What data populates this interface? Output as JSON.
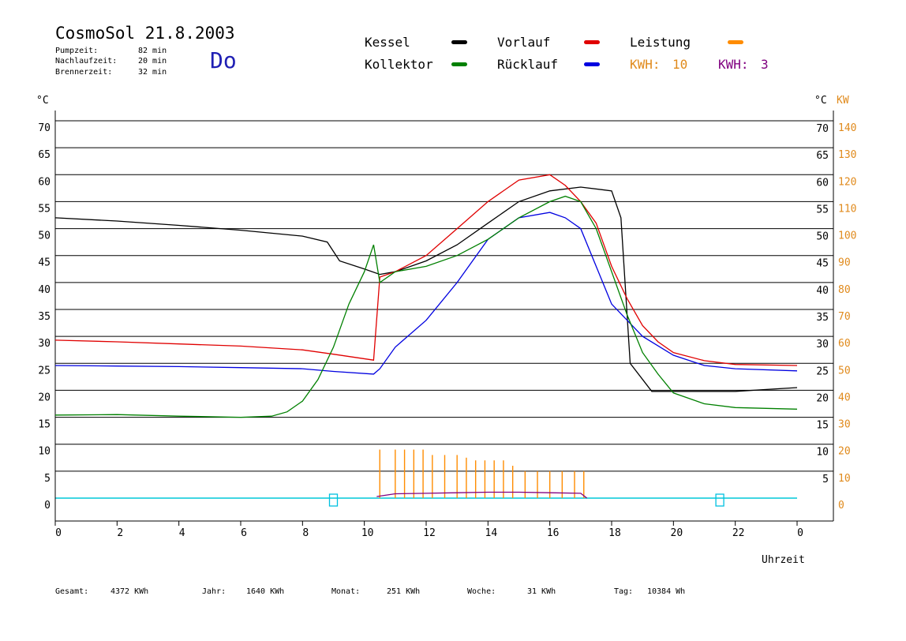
{
  "header": {
    "title": "CosmoSol 21.8.2003",
    "weekday": "Do",
    "info": [
      {
        "label": "Pumpzeit:",
        "value": "82 min"
      },
      {
        "label": "Nachlaufzeit:",
        "value": "20 min"
      },
      {
        "label": "Brennerzeit:",
        "value": "32 min"
      }
    ]
  },
  "legend": {
    "kessel": {
      "label": "Kessel",
      "color": "#000000"
    },
    "vorlauf": {
      "label": "Vorlauf",
      "color": "#e00000"
    },
    "leistung": {
      "label": "Leistung",
      "color": "#ff8c00"
    },
    "kollektor": {
      "label": "Kollektor",
      "color": "#008000"
    },
    "ruecklauf": {
      "label": "Rücklauf",
      "color": "#0000e0"
    },
    "kwh1": {
      "label": "KWH:",
      "value": "10",
      "color": "#e08a1c"
    },
    "kwh2": {
      "label": "KWH:",
      "value": "3",
      "color": "#800080"
    }
  },
  "footer": {
    "gesamt": {
      "label": "Gesamt:",
      "value": "4372 KWh"
    },
    "jahr": {
      "label": "Jahr:",
      "value": "1640 KWh"
    },
    "monat": {
      "label": "Monat:",
      "value": "251 KWh"
    },
    "woche": {
      "label": "Woche:",
      "value": "31 KWh"
    },
    "tag": {
      "label": "Tag:",
      "value": "10384 Wh"
    }
  },
  "chart_data": {
    "type": "line",
    "xlabel": "Uhrzeit",
    "ylabel_left": "°C",
    "ylabel_right_1": "°C",
    "ylabel_right_2": "KW",
    "xlim": [
      0,
      24
    ],
    "ylim": [
      0,
      70
    ],
    "ylim_right_kw": [
      0,
      140
    ],
    "x_ticks": [
      "0",
      "2",
      "4",
      "6",
      "8",
      "10",
      "12",
      "14",
      "16",
      "18",
      "20",
      "22",
      "0"
    ],
    "y_ticks_left": [
      "0",
      "5",
      "10",
      "15",
      "20",
      "25",
      "30",
      "35",
      "40",
      "45",
      "50",
      "55",
      "60",
      "65",
      "70"
    ],
    "y_ticks_right_c": [
      "5",
      "10",
      "15",
      "20",
      "25",
      "30",
      "35",
      "40",
      "45",
      "50",
      "55",
      "60",
      "65",
      "70"
    ],
    "y_ticks_right_kw": [
      "0",
      "10",
      "20",
      "30",
      "40",
      "50",
      "60",
      "70",
      "80",
      "90",
      "100",
      "110",
      "120",
      "130",
      "140"
    ],
    "grid": "horizontal",
    "series": [
      {
        "name": "Kessel",
        "color": "#000000",
        "x": [
          0,
          2,
          4,
          6,
          8,
          8.8,
          9.2,
          10,
          10.5,
          11,
          12,
          13,
          14,
          15,
          16,
          17,
          18,
          18.3,
          18.6,
          19.3,
          20,
          22,
          24
        ],
        "y": [
          52,
          51.4,
          50.6,
          49.7,
          48.6,
          47.5,
          44,
          42.5,
          41.5,
          42,
          44,
          47,
          51,
          55,
          57,
          57.7,
          57,
          52,
          25,
          19.8,
          19.8,
          19.8,
          20.5
        ]
      },
      {
        "name": "Vorlauf",
        "color": "#e00000",
        "x": [
          0,
          2,
          4,
          6,
          8,
          9,
          10.3,
          10.5,
          11,
          12,
          13,
          14,
          15,
          16,
          16.5,
          17,
          17.5,
          18,
          18.5,
          19,
          19.5,
          20,
          21,
          22,
          24
        ],
        "y": [
          29.3,
          29,
          28.6,
          28.2,
          27.5,
          26.7,
          25.6,
          41,
          42,
          45,
          50,
          55,
          59,
          60,
          58,
          55,
          51,
          43,
          37,
          32,
          29,
          27,
          25.5,
          24.8,
          24.6
        ]
      },
      {
        "name": "Rücklauf",
        "color": "#0000e0",
        "x": [
          0,
          2,
          4,
          6,
          8,
          9,
          10.3,
          10.5,
          11,
          12,
          13,
          14,
          15,
          16,
          16.5,
          17,
          17.5,
          18,
          19,
          20,
          21,
          22,
          24
        ],
        "y": [
          24.6,
          24.5,
          24.4,
          24.2,
          24,
          23.5,
          23,
          24,
          28,
          33,
          40,
          48,
          52,
          53,
          52,
          50,
          43,
          36,
          30,
          26.5,
          24.6,
          24,
          23.6
        ]
      },
      {
        "name": "Kollektor",
        "color": "#008000",
        "x": [
          0,
          2,
          4,
          6,
          7,
          7.5,
          8,
          8.5,
          9,
          9.5,
          10,
          10.3,
          10.5,
          11,
          12,
          13,
          14,
          15,
          16,
          16.5,
          17,
          17.5,
          18,
          18.5,
          19,
          19.5,
          20,
          21,
          22,
          24
        ],
        "y": [
          15.4,
          15.5,
          15.2,
          15,
          15.2,
          16,
          18,
          22,
          28,
          36,
          42,
          47,
          40,
          42,
          43,
          45,
          48,
          52,
          55,
          56,
          55,
          50,
          42,
          34,
          27,
          23,
          19.5,
          17.5,
          16.8,
          16.5
        ]
      },
      {
        "name": "Leistung",
        "color": "#ff8c00",
        "x": [
          10.45,
          10.5,
          10.55,
          11,
          11.3,
          11.6,
          11.9,
          12.2,
          12.6,
          13,
          13.3,
          13.6,
          13.9,
          14.2,
          14.5,
          14.8,
          15.2,
          15.6,
          16,
          16.4,
          16.8,
          17.1
        ],
        "y": [
          0,
          9,
          0,
          9,
          9,
          9,
          9,
          8,
          8,
          8,
          7.5,
          7,
          7,
          7,
          7,
          6,
          5,
          5,
          5,
          5,
          5,
          5
        ]
      },
      {
        "name": "KWH",
        "color": "#800080",
        "x": [
          10.4,
          11,
          12,
          13,
          14,
          15,
          16,
          17,
          17.2
        ],
        "y": [
          0.3,
          0.8,
          0.9,
          1,
          1.1,
          1.1,
          1,
          0.9,
          0
        ]
      }
    ],
    "markers": [
      {
        "x": 9.0,
        "y": 0,
        "color": "#00c0e0"
      },
      {
        "x": 21.5,
        "y": 0,
        "color": "#00c0e0"
      }
    ]
  }
}
